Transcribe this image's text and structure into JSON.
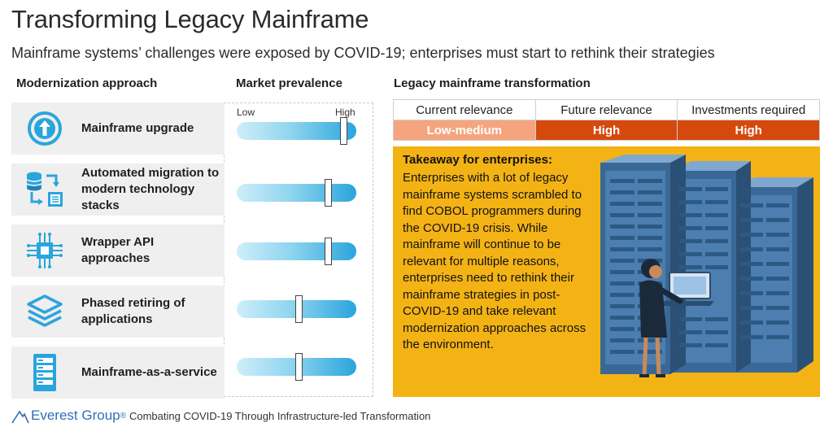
{
  "title": "Transforming Legacy Mainframe",
  "subtitle": "Mainframe systems’ challenges were exposed by COVID-19; enterprises must start to rethink their strategies",
  "headers": {
    "approach": "Modernization approach",
    "prevalence": "Market prevalence",
    "transformation": "Legacy mainframe transformation"
  },
  "scale": {
    "low": "Low",
    "high": "High"
  },
  "approaches": [
    {
      "label": "Mainframe upgrade",
      "icon": "upload-arrow-icon",
      "prevalence": 0.92
    },
    {
      "label": "Automated migration to modern technology stacks",
      "icon": "database-migration-icon",
      "prevalence": 0.78
    },
    {
      "label": "Wrapper API approaches",
      "icon": "chip-circuit-icon",
      "prevalence": 0.78
    },
    {
      "label": "Phased retiring of applications",
      "icon": "layers-icon",
      "prevalence": 0.52
    },
    {
      "label": "Mainframe-as-a-service",
      "icon": "server-rack-icon",
      "prevalence": 0.52
    }
  ],
  "transformation_table": {
    "columns": [
      "Current relevance",
      "Future relevance",
      "Investments required"
    ],
    "values": [
      "Low-medium",
      "High",
      "High"
    ],
    "colors": [
      "#f4a57d",
      "#d5490d",
      "#d5490d"
    ]
  },
  "takeaway": {
    "title": "Takeaway for enterprises:",
    "body": "Enterprises with a lot of legacy mainframe systems scrambled to find COBOL programmers during the COVID-19 crisis. While mainframe will continue to be relevant for multiple reasons, enterprises need to rethink their mainframe strategies in post-COVID-19 and take relevant modernization approaches across the environment."
  },
  "footer": {
    "brand": "Everest Group",
    "registered": "®",
    "text": "Combating COVID-19 Through Infrastructure-led Transformation"
  },
  "colors": {
    "accent_blue": "#2aa5dc",
    "takeaway_bg": "#f4b315",
    "brand_blue": "#2e6fb8"
  }
}
